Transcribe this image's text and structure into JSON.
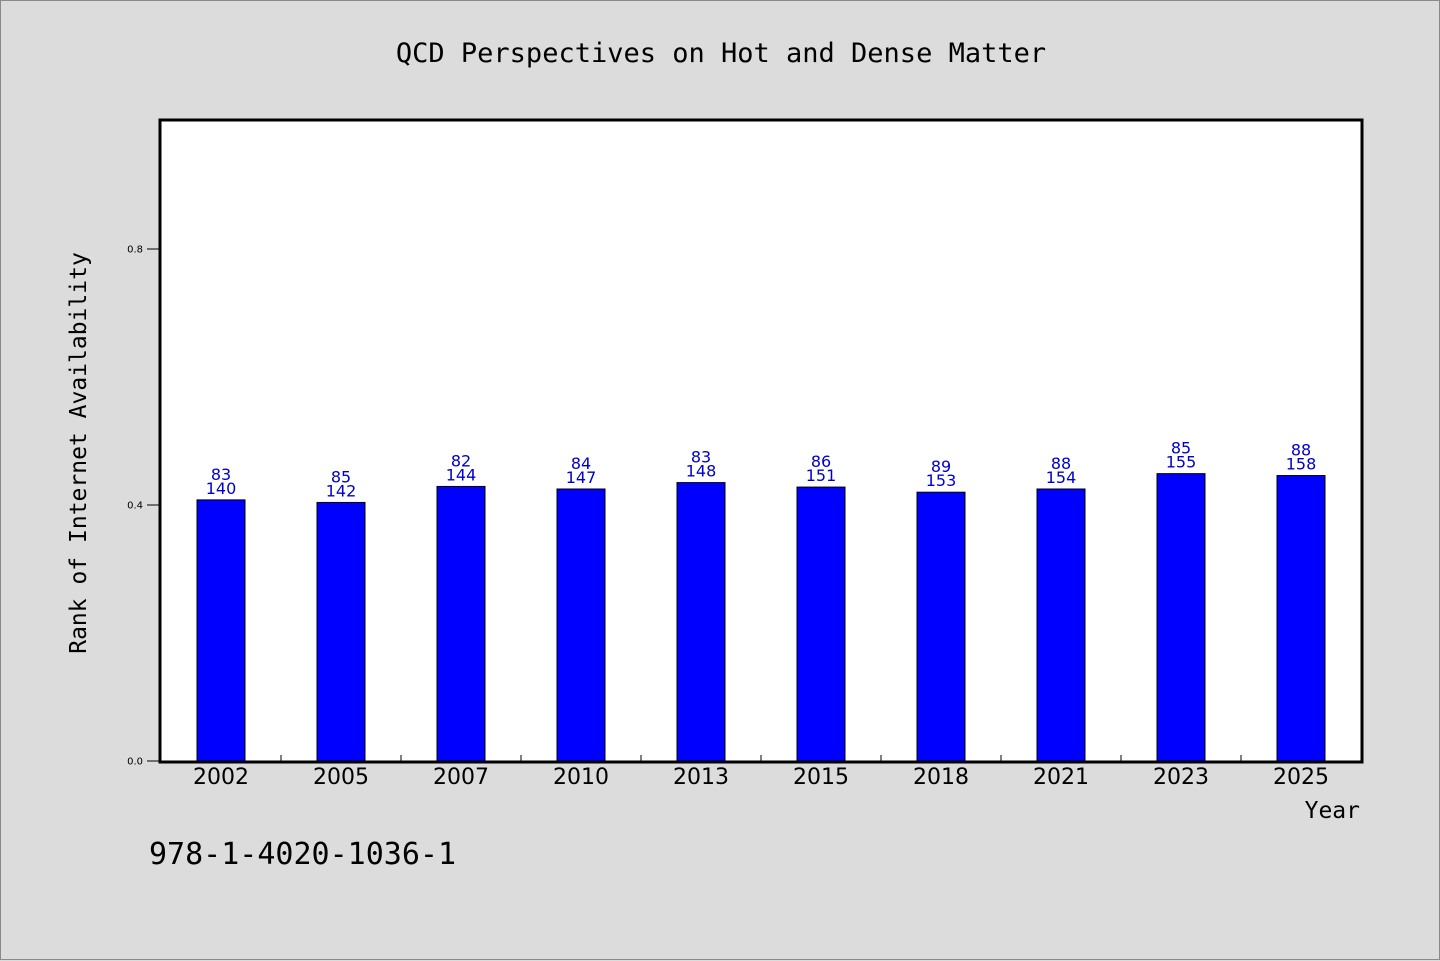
{
  "chart_data": {
    "type": "bar",
    "title": "QCD Perspectives on Hot and Dense Matter",
    "xlabel": "Year",
    "ylabel": "Rank of Internet Availability",
    "categories": [
      "2002",
      "2005",
      "2007",
      "2010",
      "2013",
      "2015",
      "2018",
      "2021",
      "2023",
      "2025"
    ],
    "values": [
      0.408,
      0.404,
      0.429,
      0.425,
      0.435,
      0.428,
      0.42,
      0.425,
      0.449,
      0.446
    ],
    "label_top": [
      "83",
      "85",
      "82",
      "84",
      "83",
      "86",
      "89",
      "88",
      "85",
      "88"
    ],
    "label_bottom": [
      "140",
      "142",
      "144",
      "147",
      "148",
      "151",
      "153",
      "154",
      "155",
      "158"
    ],
    "ylim": [
      0,
      1.0
    ],
    "yticks": [
      0.0,
      0.4,
      0.8
    ],
    "ytick_labels": [
      "0.0",
      "0.4",
      "0.8"
    ],
    "bar_color": "#0000ff",
    "label_color": "#0000cc",
    "grid": false
  },
  "footer": {
    "isbn": "978-1-4020-1036-1"
  }
}
